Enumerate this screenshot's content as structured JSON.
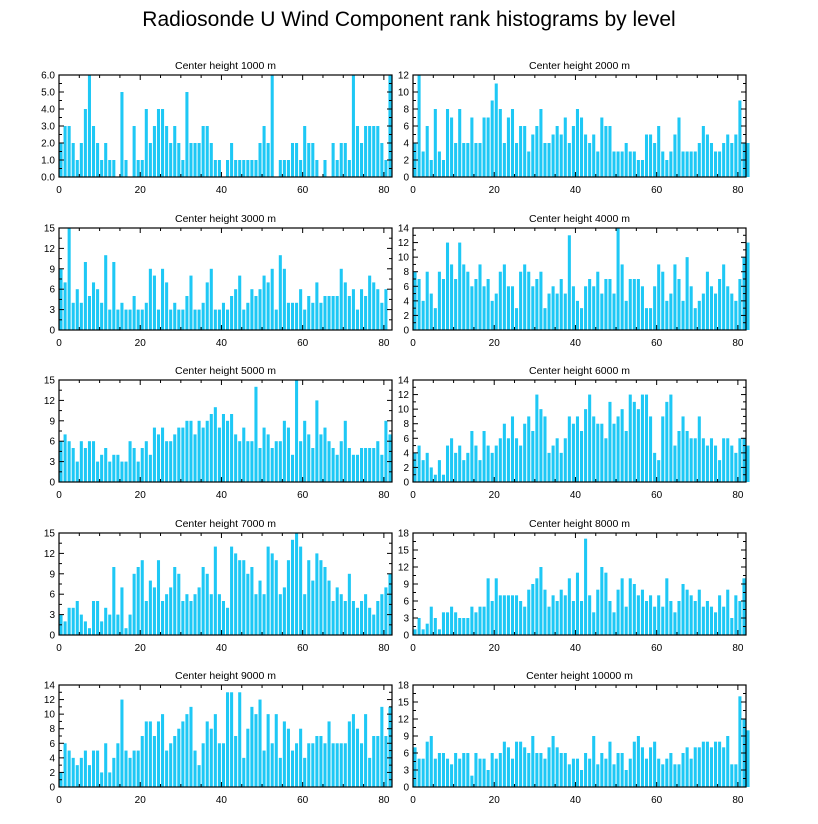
{
  "title": "Radiosonde U Wind Component rank histograms by level",
  "colors": {
    "bar": "#1ec8f5",
    "axis": "#000000",
    "background": "#ffffff"
  },
  "chart_data": [
    {
      "type": "bar",
      "title": "Center height 1000 m",
      "xlim": [
        0,
        82
      ],
      "xticks": [
        0,
        20,
        40,
        60,
        80
      ],
      "ylim": [
        0,
        6
      ],
      "yticks": [
        0,
        1,
        2,
        3,
        4,
        5,
        6
      ],
      "ytick_labels": [
        "0.0",
        "1.0",
        "2.0",
        "3.0",
        "4.0",
        "5.0",
        "6.0"
      ],
      "values": [
        2,
        3,
        3,
        2,
        1,
        2,
        4,
        6,
        3,
        2,
        1,
        2,
        1,
        1,
        0,
        5,
        1,
        0,
        3,
        1,
        1,
        4,
        2,
        3,
        4,
        4,
        3,
        2,
        3,
        2,
        1,
        5,
        2,
        2,
        2,
        3,
        3,
        2,
        1,
        1,
        0,
        1,
        2,
        1,
        1,
        1,
        1,
        1,
        1,
        2,
        3,
        2,
        6,
        0,
        1,
        1,
        1,
        2,
        2,
        1,
        3,
        2,
        2,
        1,
        0,
        1,
        0,
        2,
        1,
        2,
        2,
        1,
        6,
        3,
        2,
        3,
        3,
        3,
        3,
        2,
        1,
        6
      ]
    },
    {
      "type": "bar",
      "title": "Center height 2000 m",
      "xlim": [
        0,
        82
      ],
      "xticks": [
        0,
        20,
        40,
        60,
        80
      ],
      "ylim": [
        0,
        12
      ],
      "yticks": [
        0,
        2,
        4,
        6,
        8,
        10,
        12
      ],
      "ytick_labels": [
        "0",
        "2",
        "4",
        "6",
        "8",
        "10",
        "12"
      ],
      "values": [
        4,
        12,
        3,
        6,
        2,
        8,
        3,
        2,
        8,
        7,
        4,
        8,
        4,
        4,
        7,
        4,
        4,
        7,
        7,
        9,
        11,
        8,
        4,
        7,
        8,
        4,
        6,
        6,
        3,
        5,
        6,
        8,
        4,
        4,
        5,
        6,
        5,
        7,
        4,
        6,
        8,
        7,
        5,
        4,
        5,
        3,
        7,
        6,
        6,
        3,
        3,
        3,
        4,
        3,
        3,
        2,
        2,
        5,
        5,
        4,
        6,
        3,
        2,
        3,
        5,
        7,
        3,
        3,
        3,
        3,
        4,
        6,
        5,
        4,
        3,
        3,
        4,
        5,
        4,
        5,
        9,
        4,
        4
      ]
    },
    {
      "type": "bar",
      "title": "Center height 3000 m",
      "xlim": [
        0,
        82
      ],
      "xticks": [
        0,
        20,
        40,
        60,
        80
      ],
      "ylim": [
        0,
        15
      ],
      "yticks": [
        0,
        3,
        6,
        9,
        12,
        15
      ],
      "ytick_labels": [
        "0",
        "3",
        "6",
        "9",
        "12",
        "15"
      ],
      "values": [
        9,
        7,
        15,
        4,
        6,
        4,
        10,
        5,
        7,
        6,
        4,
        11,
        3,
        10,
        3,
        4,
        3,
        3,
        5,
        3,
        3,
        4,
        9,
        8,
        3,
        9,
        7,
        3,
        4,
        3,
        3,
        5,
        8,
        3,
        3,
        4,
        7,
        9,
        3,
        3,
        4,
        3,
        5,
        6,
        8,
        3,
        4,
        6,
        5,
        6,
        8,
        7,
        9,
        3,
        11,
        9,
        4,
        4,
        4,
        6,
        3,
        5,
        4,
        7,
        4,
        5,
        5,
        5,
        5,
        9,
        7,
        5,
        6,
        3,
        6,
        5,
        8,
        7,
        6,
        4,
        6
      ]
    },
    {
      "type": "bar",
      "title": "Center height 4000 m",
      "xlim": [
        0,
        82
      ],
      "xticks": [
        0,
        20,
        40,
        60,
        80
      ],
      "ylim": [
        0,
        14
      ],
      "yticks": [
        0,
        2,
        4,
        6,
        8,
        10,
        12,
        14
      ],
      "ytick_labels": [
        "0",
        "2",
        "4",
        "6",
        "8",
        "10",
        "12",
        "14"
      ],
      "values": [
        8,
        7,
        4,
        8,
        5,
        3,
        8,
        7,
        12,
        9,
        7,
        12,
        9,
        8,
        6,
        7,
        9,
        6,
        7,
        4,
        5,
        8,
        9,
        6,
        6,
        3,
        8,
        9,
        8,
        6,
        7,
        8,
        3,
        5,
        6,
        5,
        7,
        5,
        13,
        6,
        4,
        3,
        6,
        7,
        6,
        8,
        5,
        7,
        7,
        5,
        14,
        9,
        4,
        7,
        7,
        7,
        6,
        3,
        3,
        6,
        9,
        8,
        4,
        5,
        9,
        7,
        4,
        10,
        6,
        3,
        4,
        5,
        8,
        6,
        5,
        7,
        9,
        6,
        5,
        4,
        7,
        10,
        12
      ]
    },
    {
      "type": "bar",
      "title": "Center height 5000 m",
      "xlim": [
        0,
        82
      ],
      "xticks": [
        0,
        20,
        40,
        60,
        80
      ],
      "ylim": [
        0,
        15
      ],
      "yticks": [
        0,
        3,
        6,
        9,
        12,
        15
      ],
      "ytick_labels": [
        "0",
        "3",
        "6",
        "9",
        "12",
        "15"
      ],
      "values": [
        6,
        7,
        6,
        5,
        3,
        6,
        5,
        6,
        6,
        3,
        4,
        5,
        3,
        4,
        4,
        3,
        3,
        6,
        5,
        3,
        5,
        6,
        4,
        8,
        7,
        8,
        6,
        6,
        7,
        8,
        8,
        9,
        9,
        7,
        9,
        8,
        9,
        10,
        11,
        8,
        10,
        9,
        10,
        7,
        6,
        8,
        6,
        6,
        14,
        5,
        8,
        7,
        5,
        6,
        6,
        9,
        8,
        4,
        15,
        6,
        9,
        7,
        5,
        12,
        7,
        8,
        6,
        5,
        4,
        6,
        9,
        5,
        4,
        4,
        5,
        5,
        5,
        5,
        6,
        4,
        9,
        7
      ]
    },
    {
      "type": "bar",
      "title": "Center height 6000 m",
      "xlim": [
        0,
        82
      ],
      "xticks": [
        0,
        20,
        40,
        60,
        80
      ],
      "ylim": [
        0,
        14
      ],
      "yticks": [
        0,
        2,
        4,
        6,
        8,
        10,
        12,
        14
      ],
      "ytick_labels": [
        "0",
        "2",
        "4",
        "6",
        "8",
        "10",
        "12",
        "14"
      ],
      "values": [
        4,
        5,
        3,
        4,
        2,
        1,
        3,
        1,
        5,
        6,
        4,
        5,
        3,
        4,
        7,
        5,
        3,
        7,
        5,
        4,
        5,
        6,
        8,
        6,
        9,
        6,
        5,
        8,
        9,
        7,
        12,
        10,
        9,
        4,
        5,
        6,
        4,
        6,
        9,
        8,
        9,
        7,
        10,
        12,
        9,
        8,
        8,
        6,
        11,
        8,
        9,
        10,
        7,
        12,
        11,
        10,
        12,
        12,
        9,
        4,
        3,
        9,
        11,
        12,
        5,
        7,
        9,
        7,
        6,
        6,
        9,
        6,
        5,
        6,
        5,
        3,
        6,
        6,
        5,
        4,
        6,
        6,
        5
      ]
    },
    {
      "type": "bar",
      "title": "Center height 7000 m",
      "xlim": [
        0,
        82
      ],
      "xticks": [
        0,
        20,
        40,
        60,
        80
      ],
      "ylim": [
        0,
        15
      ],
      "yticks": [
        0,
        3,
        6,
        9,
        12,
        15
      ],
      "ytick_labels": [
        "0",
        "3",
        "6",
        "9",
        "12",
        "15"
      ],
      "values": [
        3,
        2,
        4,
        4,
        5,
        3,
        2,
        1,
        5,
        5,
        2,
        4,
        3,
        10,
        3,
        7,
        1,
        3,
        9,
        10,
        11,
        5,
        8,
        7,
        11,
        5,
        6,
        7,
        10,
        9,
        5,
        6,
        5,
        6,
        7,
        10,
        9,
        6,
        13,
        6,
        5,
        4,
        13,
        12,
        11,
        11,
        9,
        10,
        6,
        8,
        6,
        13,
        12,
        11,
        6,
        7,
        11,
        14,
        15,
        13,
        6,
        11,
        8,
        12,
        11,
        10,
        8,
        5,
        7,
        6,
        5,
        9,
        5,
        4,
        5,
        6,
        4,
        3,
        5,
        6,
        7,
        9
      ]
    },
    {
      "type": "bar",
      "title": "Center height 8000 m",
      "xlim": [
        0,
        82
      ],
      "xticks": [
        0,
        20,
        40,
        60,
        80
      ],
      "ylim": [
        0,
        18
      ],
      "yticks": [
        0,
        3,
        6,
        9,
        12,
        15,
        18
      ],
      "ytick_labels": [
        "0",
        "3",
        "6",
        "9",
        "12",
        "15",
        "18"
      ],
      "values": [
        1,
        3,
        1,
        2,
        5,
        3,
        1,
        4,
        4,
        5,
        4,
        3,
        3,
        3,
        5,
        4,
        5,
        5,
        10,
        6,
        10,
        7,
        7,
        7,
        7,
        7,
        6,
        5,
        8,
        9,
        10,
        12,
        8,
        5,
        7,
        6,
        8,
        7,
        10,
        6,
        11,
        6,
        17,
        7,
        4,
        8,
        12,
        11,
        6,
        4,
        8,
        10,
        5,
        10,
        9,
        7,
        8,
        6,
        7,
        5,
        7,
        5,
        10,
        6,
        4,
        6,
        9,
        8,
        7,
        6,
        8,
        5,
        6,
        5,
        4,
        7,
        5,
        8,
        3,
        7,
        6,
        10
      ]
    },
    {
      "type": "bar",
      "title": "Center height 9000 m",
      "xlim": [
        0,
        82
      ],
      "xticks": [
        0,
        20,
        40,
        60,
        80
      ],
      "ylim": [
        0,
        14
      ],
      "yticks": [
        0,
        2,
        4,
        6,
        8,
        10,
        12,
        14
      ],
      "ytick_labels": [
        "0",
        "2",
        "4",
        "6",
        "8",
        "10",
        "12",
        "14"
      ],
      "values": [
        2,
        6,
        5,
        4,
        3,
        4,
        5,
        3,
        5,
        5,
        2,
        6,
        2,
        4,
        6,
        12,
        5,
        4,
        5,
        5,
        7,
        9,
        9,
        7,
        9,
        10,
        5,
        6,
        7,
        8,
        9,
        10,
        11,
        5,
        3,
        6,
        9,
        8,
        10,
        6,
        6,
        13,
        13,
        7,
        13,
        4,
        8,
        11,
        10,
        12,
        5,
        10,
        6,
        10,
        4,
        9,
        8,
        5,
        6,
        8,
        4,
        6,
        6,
        7,
        7,
        6,
        9,
        6,
        6,
        6,
        6,
        9,
        10,
        8,
        6,
        10,
        4,
        7,
        7,
        11,
        7,
        11
      ]
    },
    {
      "type": "bar",
      "title": "Center height 10000 m",
      "xlim": [
        0,
        82
      ],
      "xticks": [
        0,
        20,
        40,
        60,
        80
      ],
      "ylim": [
        0,
        18
      ],
      "yticks": [
        0,
        3,
        6,
        9,
        12,
        15,
        18
      ],
      "ytick_labels": [
        "0",
        "3",
        "6",
        "9",
        "12",
        "15",
        "18"
      ],
      "values": [
        7,
        5,
        5,
        8,
        9,
        5,
        6,
        6,
        5,
        4,
        6,
        5,
        6,
        6,
        2,
        6,
        5,
        5,
        3,
        6,
        5,
        6,
        8,
        7,
        5,
        8,
        8,
        7,
        6,
        9,
        6,
        6,
        5,
        7,
        9,
        7,
        6,
        6,
        4,
        5,
        5,
        3,
        6,
        5,
        9,
        4,
        6,
        5,
        8,
        4,
        6,
        6,
        3,
        5,
        8,
        9,
        7,
        5,
        7,
        8,
        5,
        4,
        5,
        6,
        4,
        4,
        6,
        7,
        5,
        7,
        7,
        8,
        8,
        7,
        8,
        8,
        7,
        9,
        4,
        4,
        16,
        12,
        10
      ]
    }
  ]
}
